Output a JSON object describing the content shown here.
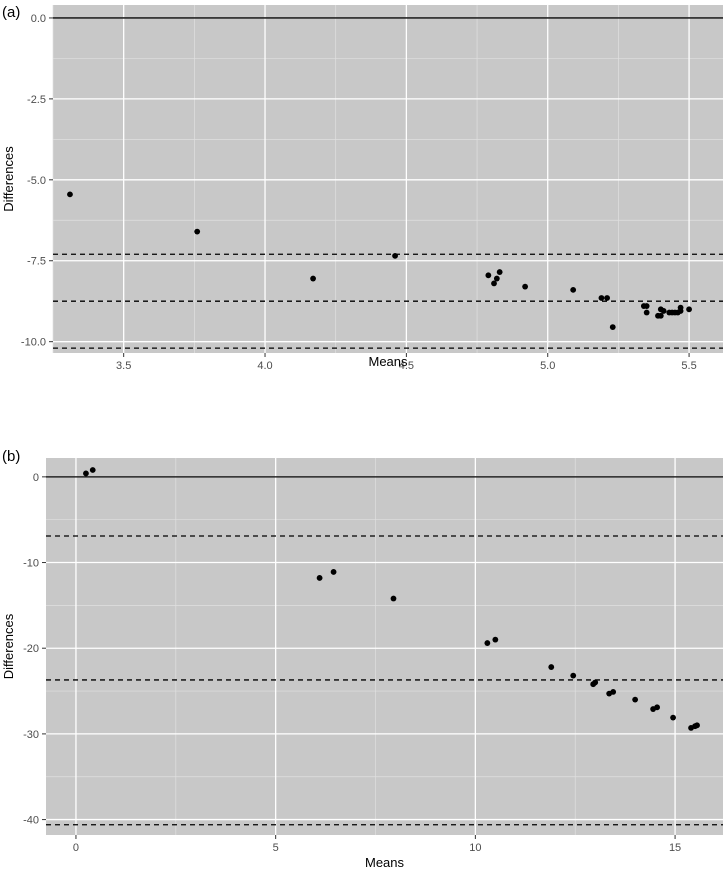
{
  "chart_data": [
    {
      "panel_label": "(a)",
      "type": "scatter",
      "xlabel": "Means",
      "ylabel": "Differences",
      "xlim": [
        3.25,
        5.62
      ],
      "ylim": [
        -10.35,
        0.4
      ],
      "x_ticks": [
        3.5,
        4.0,
        4.5,
        5.0,
        5.5
      ],
      "x_tick_labels": [
        "3.5",
        "4.0",
        "4.5",
        "5.0",
        "5.5"
      ],
      "y_ticks": [
        0,
        -2.5,
        -5,
        -7.5,
        -10
      ],
      "y_tick_labels": [
        "0.0",
        "-2.5",
        "-5.0",
        "-7.5",
        "-10.0"
      ],
      "grid": true,
      "reference_lines": [
        {
          "name": "zero",
          "y": 0,
          "style": "solid"
        },
        {
          "name": "upper-limit",
          "y": -7.3,
          "style": "dashed"
        },
        {
          "name": "mean-difference",
          "y": -8.75,
          "style": "dashed"
        },
        {
          "name": "lower-limit",
          "y": -10.2,
          "style": "dashed"
        }
      ],
      "points": [
        {
          "x": 3.31,
          "y": -5.45
        },
        {
          "x": 3.76,
          "y": -6.6
        },
        {
          "x": 4.17,
          "y": -8.05
        },
        {
          "x": 4.46,
          "y": -7.35
        },
        {
          "x": 4.79,
          "y": -7.95
        },
        {
          "x": 4.81,
          "y": -8.2
        },
        {
          "x": 4.82,
          "y": -8.05
        },
        {
          "x": 4.83,
          "y": -7.85
        },
        {
          "x": 4.92,
          "y": -8.3
        },
        {
          "x": 5.09,
          "y": -8.4
        },
        {
          "x": 5.19,
          "y": -8.65
        },
        {
          "x": 5.21,
          "y": -8.65
        },
        {
          "x": 5.23,
          "y": -9.55
        },
        {
          "x": 5.34,
          "y": -8.9
        },
        {
          "x": 5.35,
          "y": -8.9
        },
        {
          "x": 5.35,
          "y": -9.1
        },
        {
          "x": 5.39,
          "y": -9.2
        },
        {
          "x": 5.4,
          "y": -9.0
        },
        {
          "x": 5.4,
          "y": -9.2
        },
        {
          "x": 5.41,
          "y": -9.05
        },
        {
          "x": 5.43,
          "y": -9.1
        },
        {
          "x": 5.44,
          "y": -9.1
        },
        {
          "x": 5.45,
          "y": -9.1
        },
        {
          "x": 5.46,
          "y": -9.1
        },
        {
          "x": 5.47,
          "y": -9.05
        },
        {
          "x": 5.47,
          "y": -8.95
        },
        {
          "x": 5.5,
          "y": -9.0
        }
      ]
    },
    {
      "panel_label": "(b)",
      "type": "scatter",
      "xlabel": "Means",
      "ylabel": "Differences",
      "xlim": [
        -0.75,
        16.2
      ],
      "ylim": [
        -41.8,
        2.2
      ],
      "x_ticks": [
        0,
        5,
        10,
        15
      ],
      "x_tick_labels": [
        "0",
        "5",
        "10",
        "15"
      ],
      "y_ticks": [
        0,
        -10,
        -20,
        -30,
        -40
      ],
      "y_tick_labels": [
        "0",
        "-10",
        "-20",
        "-30",
        "-40"
      ],
      "grid": true,
      "reference_lines": [
        {
          "name": "zero",
          "y": 0,
          "style": "solid"
        },
        {
          "name": "upper-limit",
          "y": -6.9,
          "style": "dashed"
        },
        {
          "name": "mean-difference",
          "y": -23.7,
          "style": "dashed"
        },
        {
          "name": "lower-limit",
          "y": -40.6,
          "style": "dashed"
        }
      ],
      "points": [
        {
          "x": 0.25,
          "y": 0.4
        },
        {
          "x": 0.42,
          "y": 0.8
        },
        {
          "x": 6.1,
          "y": -11.8
        },
        {
          "x": 6.45,
          "y": -11.1
        },
        {
          "x": 7.95,
          "y": -14.2
        },
        {
          "x": 10.3,
          "y": -19.4
        },
        {
          "x": 10.5,
          "y": -19.0
        },
        {
          "x": 11.9,
          "y": -22.2
        },
        {
          "x": 12.45,
          "y": -23.2
        },
        {
          "x": 12.95,
          "y": -24.2
        },
        {
          "x": 13.0,
          "y": -24.0
        },
        {
          "x": 13.35,
          "y": -25.3
        },
        {
          "x": 13.45,
          "y": -25.1
        },
        {
          "x": 14.0,
          "y": -26.0
        },
        {
          "x": 14.45,
          "y": -27.1
        },
        {
          "x": 14.55,
          "y": -26.9
        },
        {
          "x": 14.95,
          "y": -28.1
        },
        {
          "x": 15.4,
          "y": -29.3
        },
        {
          "x": 15.5,
          "y": -29.1
        },
        {
          "x": 15.55,
          "y": -29.0
        }
      ]
    }
  ]
}
